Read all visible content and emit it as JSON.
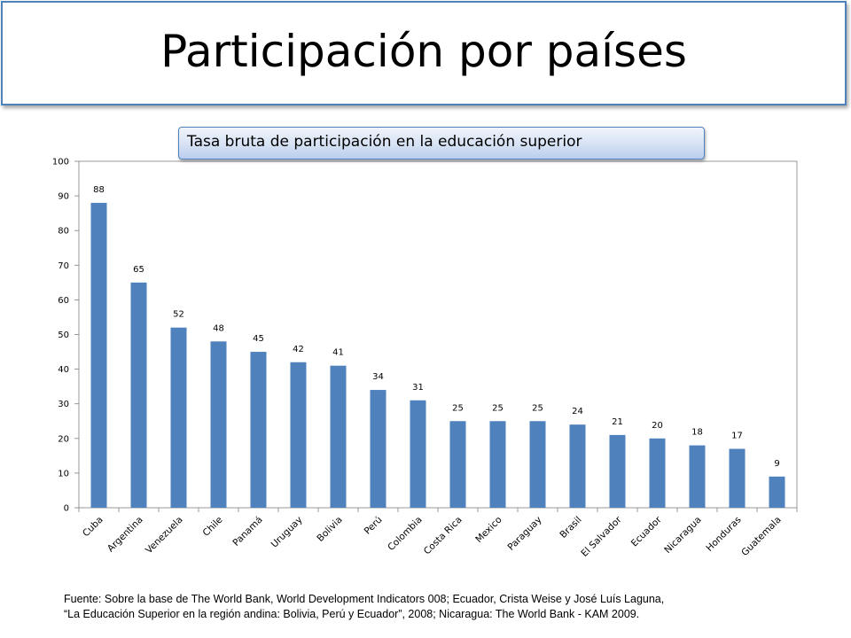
{
  "slide": {
    "title": "Participación por países"
  },
  "chart_data": {
    "type": "bar",
    "title": "Tasa bruta de participación en la educación superior",
    "categories": [
      "Cuba",
      "Argentina",
      "Venezuela",
      "Chile",
      "Panamá",
      "Uruguay",
      "Bolivia",
      "Perú",
      "Colombia",
      "Costa Rica",
      "Mexico",
      "Paraguay",
      "Brasil",
      "El Salvador",
      "Ecuador",
      "Nicaragua",
      "Honduras",
      "Guatemala"
    ],
    "values": [
      88,
      65,
      52,
      48,
      45,
      42,
      41,
      34,
      31,
      25,
      25,
      25,
      24,
      21,
      20,
      18,
      17,
      9
    ],
    "ylim": [
      0,
      100
    ],
    "yticks": [
      0,
      10,
      20,
      30,
      40,
      50,
      60,
      70,
      80,
      90,
      100
    ],
    "xlabel": "",
    "ylabel": "",
    "bar_color": "#4f81bd",
    "data_labels": true,
    "legend": false
  },
  "source": {
    "line1": "Fuente: Sobre la base de The World Bank, World Development Indicators 008; Ecuador, Crista Weise y José Luís Laguna,",
    "line2": "“La Educación Superior en la región andina: Bolivia, Perú y Ecuador”, 2008; Nicaragua: The World Bank - KAM 2009."
  }
}
